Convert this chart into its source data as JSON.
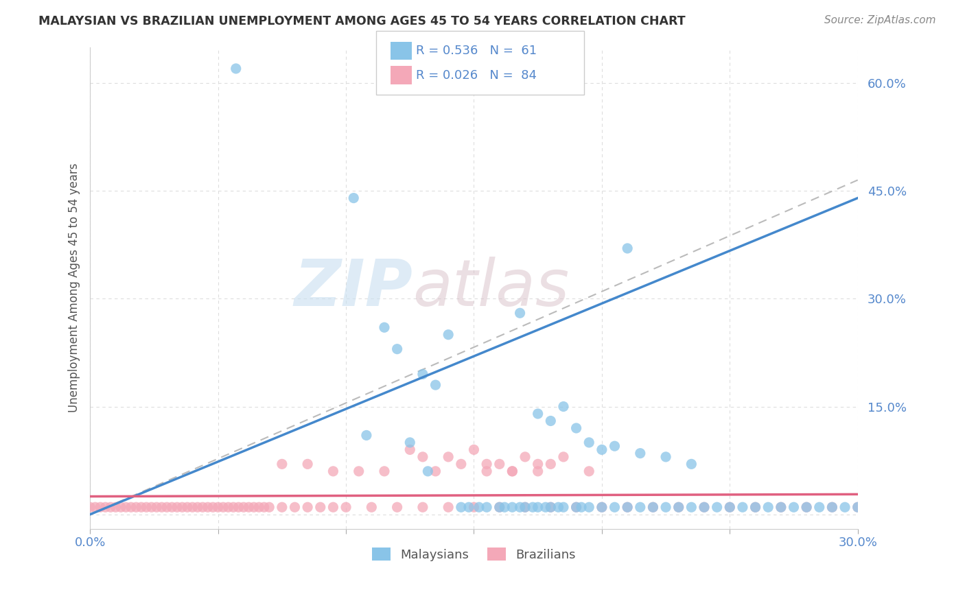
{
  "title": "MALAYSIAN VS BRAZILIAN UNEMPLOYMENT AMONG AGES 45 TO 54 YEARS CORRELATION CHART",
  "source": "Source: ZipAtlas.com",
  "ylabel": "Unemployment Among Ages 45 to 54 years",
  "xlim": [
    0.0,
    0.3
  ],
  "ylim": [
    -0.02,
    0.65
  ],
  "yticks": [
    0.0,
    0.15,
    0.3,
    0.45,
    0.6
  ],
  "ytick_labels": [
    "",
    "15.0%",
    "30.0%",
    "45.0%",
    "60.0%"
  ],
  "xticks": [
    0.0,
    0.05,
    0.1,
    0.15,
    0.2,
    0.25,
    0.3
  ],
  "xtick_labels": [
    "0.0%",
    "",
    "",
    "",
    "",
    "",
    "30.0%"
  ],
  "malaysia_color": "#89c4e8",
  "brazil_color": "#f4a8b8",
  "malaysia_trend_color": "#4488cc",
  "brazil_trend_color": "#e06080",
  "dashed_line_color": "#bbbbbb",
  "background_color": "#ffffff",
  "grid_color": "#dddddd",
  "title_color": "#333333",
  "tick_color": "#5588cc",
  "watermark_zip": "ZIP",
  "watermark_atlas": "atlas",
  "malaysia_x": [
    0.057,
    0.103,
    0.12,
    0.132,
    0.145,
    0.148,
    0.152,
    0.155,
    0.16,
    0.162,
    0.165,
    0.168,
    0.17,
    0.173,
    0.175,
    0.178,
    0.18,
    0.183,
    0.185,
    0.19,
    0.192,
    0.195,
    0.2,
    0.205,
    0.21,
    0.215,
    0.22,
    0.225,
    0.23,
    0.235,
    0.24,
    0.245,
    0.25,
    0.255,
    0.26,
    0.265,
    0.27,
    0.275,
    0.28,
    0.285,
    0.29,
    0.295,
    0.3,
    0.125,
    0.13,
    0.135,
    0.14,
    0.115,
    0.108,
    0.168,
    0.175,
    0.18,
    0.185,
    0.19,
    0.195,
    0.2,
    0.205,
    0.21,
    0.215,
    0.225,
    0.235
  ],
  "malaysia_y": [
    0.62,
    0.44,
    0.23,
    0.06,
    0.01,
    0.01,
    0.01,
    0.01,
    0.01,
    0.01,
    0.01,
    0.01,
    0.01,
    0.01,
    0.01,
    0.01,
    0.01,
    0.01,
    0.01,
    0.01,
    0.01,
    0.01,
    0.01,
    0.01,
    0.01,
    0.01,
    0.01,
    0.01,
    0.01,
    0.01,
    0.01,
    0.01,
    0.01,
    0.01,
    0.01,
    0.01,
    0.01,
    0.01,
    0.01,
    0.01,
    0.01,
    0.01,
    0.01,
    0.1,
    0.195,
    0.18,
    0.25,
    0.26,
    0.11,
    0.28,
    0.14,
    0.13,
    0.15,
    0.12,
    0.1,
    0.09,
    0.095,
    0.37,
    0.085,
    0.08,
    0.07
  ],
  "brazil_x": [
    0.0,
    0.002,
    0.004,
    0.006,
    0.008,
    0.01,
    0.012,
    0.014,
    0.016,
    0.018,
    0.02,
    0.022,
    0.024,
    0.026,
    0.028,
    0.03,
    0.032,
    0.034,
    0.036,
    0.038,
    0.04,
    0.042,
    0.044,
    0.046,
    0.048,
    0.05,
    0.052,
    0.054,
    0.056,
    0.058,
    0.06,
    0.062,
    0.064,
    0.066,
    0.068,
    0.07,
    0.075,
    0.08,
    0.085,
    0.09,
    0.095,
    0.1,
    0.11,
    0.12,
    0.13,
    0.14,
    0.15,
    0.16,
    0.17,
    0.18,
    0.19,
    0.2,
    0.21,
    0.22,
    0.23,
    0.24,
    0.25,
    0.26,
    0.27,
    0.28,
    0.29,
    0.3,
    0.155,
    0.165,
    0.175,
    0.185,
    0.195,
    0.13,
    0.14,
    0.15,
    0.16,
    0.17,
    0.18,
    0.125,
    0.135,
    0.145,
    0.155,
    0.165,
    0.175,
    0.115,
    0.105,
    0.095,
    0.085,
    0.075
  ],
  "brazil_y": [
    0.01,
    0.01,
    0.01,
    0.01,
    0.01,
    0.01,
    0.01,
    0.01,
    0.01,
    0.01,
    0.01,
    0.01,
    0.01,
    0.01,
    0.01,
    0.01,
    0.01,
    0.01,
    0.01,
    0.01,
    0.01,
    0.01,
    0.01,
    0.01,
    0.01,
    0.01,
    0.01,
    0.01,
    0.01,
    0.01,
    0.01,
    0.01,
    0.01,
    0.01,
    0.01,
    0.01,
    0.01,
    0.01,
    0.01,
    0.01,
    0.01,
    0.01,
    0.01,
    0.01,
    0.01,
    0.01,
    0.01,
    0.01,
    0.01,
    0.01,
    0.01,
    0.01,
    0.01,
    0.01,
    0.01,
    0.01,
    0.01,
    0.01,
    0.01,
    0.01,
    0.01,
    0.01,
    0.07,
    0.06,
    0.07,
    0.08,
    0.06,
    0.08,
    0.08,
    0.09,
    0.07,
    0.08,
    0.07,
    0.09,
    0.06,
    0.07,
    0.06,
    0.06,
    0.06,
    0.06,
    0.06,
    0.06,
    0.07,
    0.07
  ]
}
